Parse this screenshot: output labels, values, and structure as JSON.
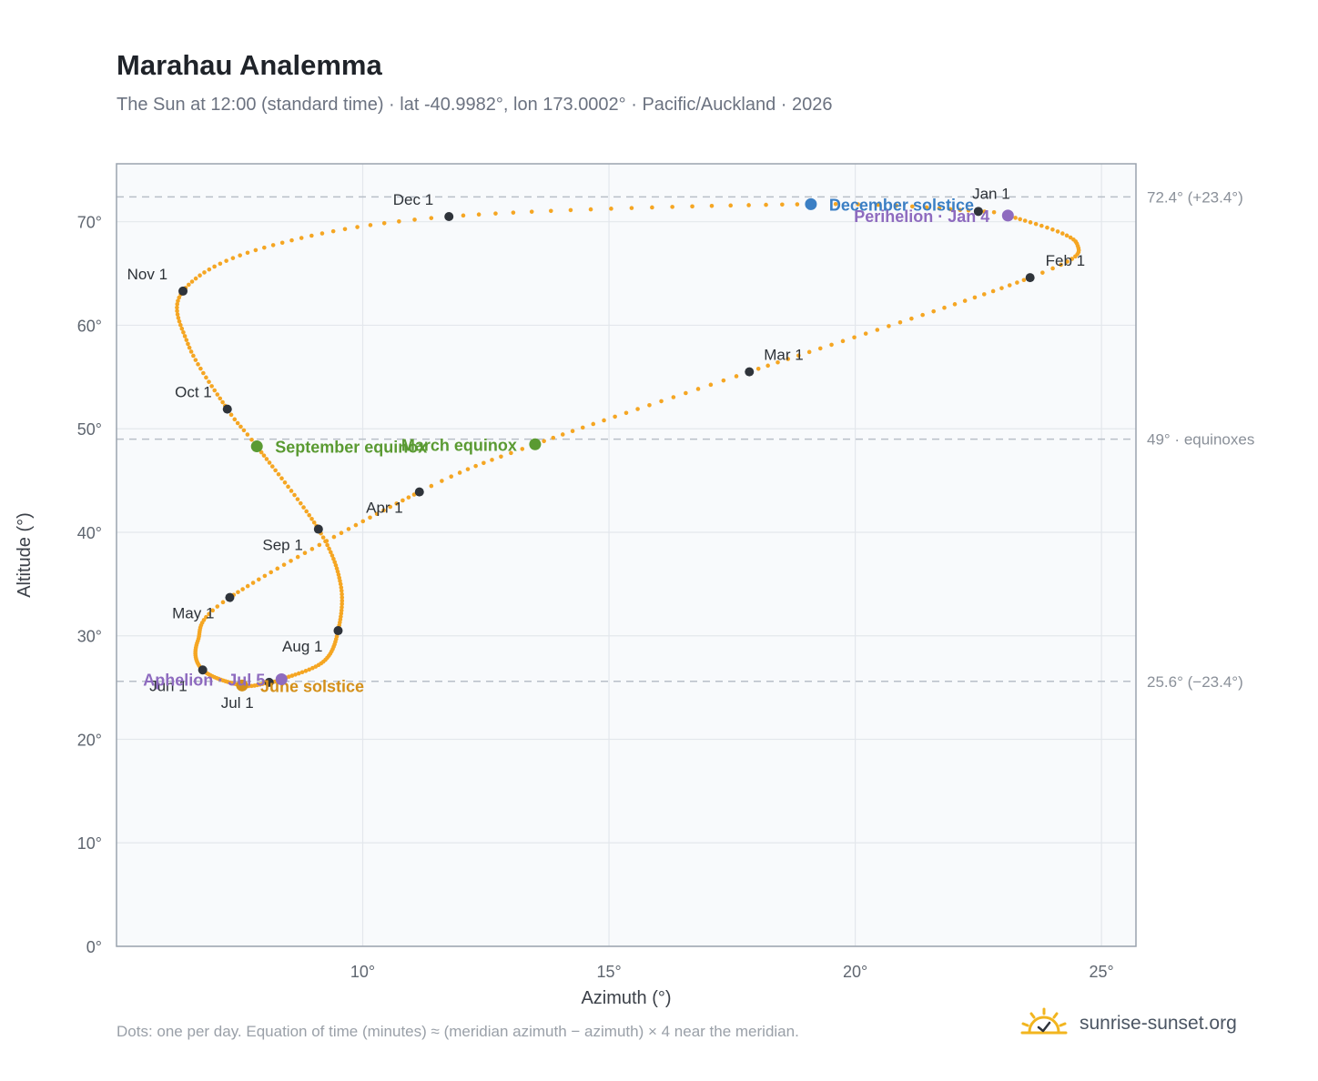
{
  "title": "Marahau Analemma",
  "subtitle": "The Sun at 12:00 (standard time) · lat -40.9982°, lon 173.0002° · Pacific/Auckland · 2026",
  "footnote": "Dots: one per day. Equation of time (minutes) ≈ (meridian azimuth − azimuth) × 4 near the meridian.",
  "brand": {
    "name": "sunrise-sunset.org",
    "icon": "sunrise-logo-icon"
  },
  "colors": {
    "path": "#f5a623",
    "month_marker": "#2f343b",
    "solstice_june": "#d4901a",
    "solstice_december": "#3b7fc4",
    "equinox": "#5a9a32",
    "apsis": "#8e6bbf",
    "plot_bg": "#f8fafc",
    "grid": "#e3e7ec",
    "reference": "#b8bfc8"
  },
  "chart_data": {
    "type": "scatter",
    "xlabel": "Azimuth (°)",
    "ylabel": "Altitude (°)",
    "xlim": [
      5,
      25.7
    ],
    "ylim": [
      0,
      75.6
    ],
    "xticks": [
      10,
      15,
      20,
      25
    ],
    "xtick_labels": [
      "10°",
      "15°",
      "20°",
      "25°"
    ],
    "yticks": [
      0,
      10,
      20,
      30,
      40,
      50,
      60,
      70
    ],
    "ytick_labels": [
      "0°",
      "10°",
      "20°",
      "30°",
      "40°",
      "50°",
      "60°",
      "70°"
    ],
    "grid": true,
    "reference_lines": [
      {
        "y": 72.4,
        "label": "72.4° (+23.4°)"
      },
      {
        "y": 49,
        "label": "49° · equinoxes"
      },
      {
        "y": 25.6,
        "label": "25.6° (−23.4°)"
      }
    ],
    "path_anchors": [
      {
        "doy": 1,
        "az": 22.5,
        "alt": 71.0
      },
      {
        "doy": 4,
        "az": 23.1,
        "alt": 70.6
      },
      {
        "doy": 20,
        "az": 24.5,
        "alt": 67.9
      },
      {
        "doy": 32,
        "az": 23.55,
        "alt": 64.6
      },
      {
        "doy": 60,
        "az": 17.85,
        "alt": 55.5
      },
      {
        "doy": 79,
        "az": 13.5,
        "alt": 48.5
      },
      {
        "doy": 91,
        "az": 11.15,
        "alt": 43.9
      },
      {
        "doy": 121,
        "az": 7.3,
        "alt": 33.7
      },
      {
        "doy": 136,
        "az": 6.65,
        "alt": 29.5
      },
      {
        "doy": 152,
        "az": 6.75,
        "alt": 26.7
      },
      {
        "doy": 172,
        "az": 7.55,
        "alt": 25.2
      },
      {
        "doy": 182,
        "az": 8.1,
        "alt": 25.5
      },
      {
        "doy": 186,
        "az": 8.35,
        "alt": 25.8
      },
      {
        "doy": 200,
        "az": 9.2,
        "alt": 27.5
      },
      {
        "doy": 213,
        "az": 9.5,
        "alt": 30.5
      },
      {
        "doy": 228,
        "az": 9.55,
        "alt": 35.0
      },
      {
        "doy": 244,
        "az": 9.1,
        "alt": 40.3
      },
      {
        "doy": 266,
        "az": 7.85,
        "alt": 48.3
      },
      {
        "doy": 274,
        "az": 7.25,
        "alt": 51.9
      },
      {
        "doy": 290,
        "az": 6.45,
        "alt": 58.2
      },
      {
        "doy": 305,
        "az": 6.35,
        "alt": 63.3
      },
      {
        "doy": 320,
        "az": 8.0,
        "alt": 67.5
      },
      {
        "doy": 335,
        "az": 11.75,
        "alt": 70.5
      },
      {
        "doy": 355,
        "az": 19.1,
        "alt": 71.7
      },
      {
        "doy": 365,
        "az": 22.3,
        "alt": 71.1
      }
    ],
    "month_markers": [
      {
        "label": "Jan 1",
        "az": 22.5,
        "alt": 71.0,
        "anchor": "middle",
        "dx": 14,
        "dy": -14
      },
      {
        "label": "Feb 1",
        "az": 23.55,
        "alt": 64.6,
        "anchor": "start",
        "dx": 17,
        "dy": -13
      },
      {
        "label": "Mar 1",
        "az": 17.85,
        "alt": 55.5,
        "anchor": "start",
        "dx": 16,
        "dy": -13
      },
      {
        "label": "Apr 1",
        "az": 11.15,
        "alt": 43.9,
        "anchor": "end",
        "dx": -18,
        "dy": 23
      },
      {
        "label": "May 1",
        "az": 7.3,
        "alt": 33.7,
        "anchor": "end",
        "dx": -17,
        "dy": 23
      },
      {
        "label": "Jun 1",
        "az": 6.75,
        "alt": 26.7,
        "anchor": "end",
        "dx": -17,
        "dy": 23
      },
      {
        "label": "Jul 1",
        "az": 8.1,
        "alt": 25.5,
        "anchor": "end",
        "dx": -17,
        "dy": 28
      },
      {
        "label": "Aug 1",
        "az": 9.5,
        "alt": 30.5,
        "anchor": "end",
        "dx": -17,
        "dy": 23
      },
      {
        "label": "Sep 1",
        "az": 9.1,
        "alt": 40.3,
        "anchor": "end",
        "dx": -17,
        "dy": 23
      },
      {
        "label": "Oct 1",
        "az": 7.25,
        "alt": 51.9,
        "anchor": "end",
        "dx": -17,
        "dy": -13
      },
      {
        "label": "Nov 1",
        "az": 6.35,
        "alt": 63.3,
        "anchor": "end",
        "dx": -17,
        "dy": -13
      },
      {
        "label": "Dec 1",
        "az": 11.75,
        "alt": 70.5,
        "anchor": "end",
        "dx": -17,
        "dy": -13
      }
    ],
    "events": [
      {
        "label": "June solstice",
        "az": 7.55,
        "alt": 25.2,
        "color_key": "solstice_june",
        "anchor": "start",
        "dx": 20,
        "dy": 7
      },
      {
        "label": "Aphelion · Jul 5",
        "az": 8.35,
        "alt": 25.8,
        "color_key": "apsis",
        "anchor": "end",
        "dx": -18,
        "dy": 7
      },
      {
        "label": "September equinox",
        "az": 7.85,
        "alt": 48.3,
        "color_key": "equinox",
        "anchor": "start",
        "dx": 20,
        "dy": 7
      },
      {
        "label": "March equinox",
        "az": 13.5,
        "alt": 48.5,
        "color_key": "equinox",
        "anchor": "end",
        "dx": -20,
        "dy": 7
      },
      {
        "label": "December solstice",
        "az": 19.1,
        "alt": 71.7,
        "color_key": "solstice_december",
        "anchor": "start",
        "dx": 20,
        "dy": 7
      },
      {
        "label": "Perihelion · Jan 4",
        "az": 23.1,
        "alt": 70.6,
        "color_key": "apsis",
        "anchor": "end",
        "dx": -20,
        "dy": 7
      }
    ]
  }
}
